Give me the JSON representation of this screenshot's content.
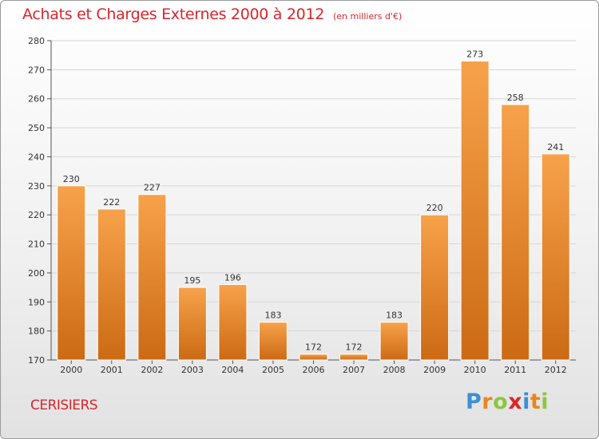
{
  "header": {
    "title": "Achats et Charges Externes 2000 à 2012",
    "subtitle": "(en milliers d'€)"
  },
  "footer": {
    "commune": "CERISIERS",
    "logo_letters": [
      {
        "char": "P",
        "color": "#3d8fd1"
      },
      {
        "char": "r",
        "color": "#e8871e"
      },
      {
        "char": "o",
        "color": "#8dc63f"
      },
      {
        "char": "x",
        "color": "#d9262d"
      },
      {
        "char": "i",
        "color": "#3d8fd1"
      },
      {
        "char": "t",
        "color": "#e8871e"
      },
      {
        "char": "i",
        "color": "#8dc63f"
      }
    ]
  },
  "colors": {
    "bar_top": "#f7a24b",
    "bar_bottom": "#cc6a14",
    "grid": "#d6d6d6",
    "title": "#d9262d"
  },
  "chart_data": {
    "type": "bar",
    "title": "Achats et Charges Externes 2000 à 2012",
    "subtitle": "(en milliers d'€)",
    "xlabel": "",
    "ylabel": "",
    "categories": [
      "2000",
      "2001",
      "2002",
      "2003",
      "2004",
      "2005",
      "2006",
      "2007",
      "2008",
      "2009",
      "2010",
      "2011",
      "2012"
    ],
    "values": [
      230,
      222,
      227,
      195,
      196,
      183,
      172,
      172,
      183,
      220,
      273,
      258,
      241
    ],
    "ylim": [
      170,
      280
    ],
    "yticks": [
      170,
      180,
      190,
      200,
      210,
      220,
      230,
      240,
      250,
      260,
      270,
      280
    ],
    "grid": true,
    "data_labels": true
  }
}
